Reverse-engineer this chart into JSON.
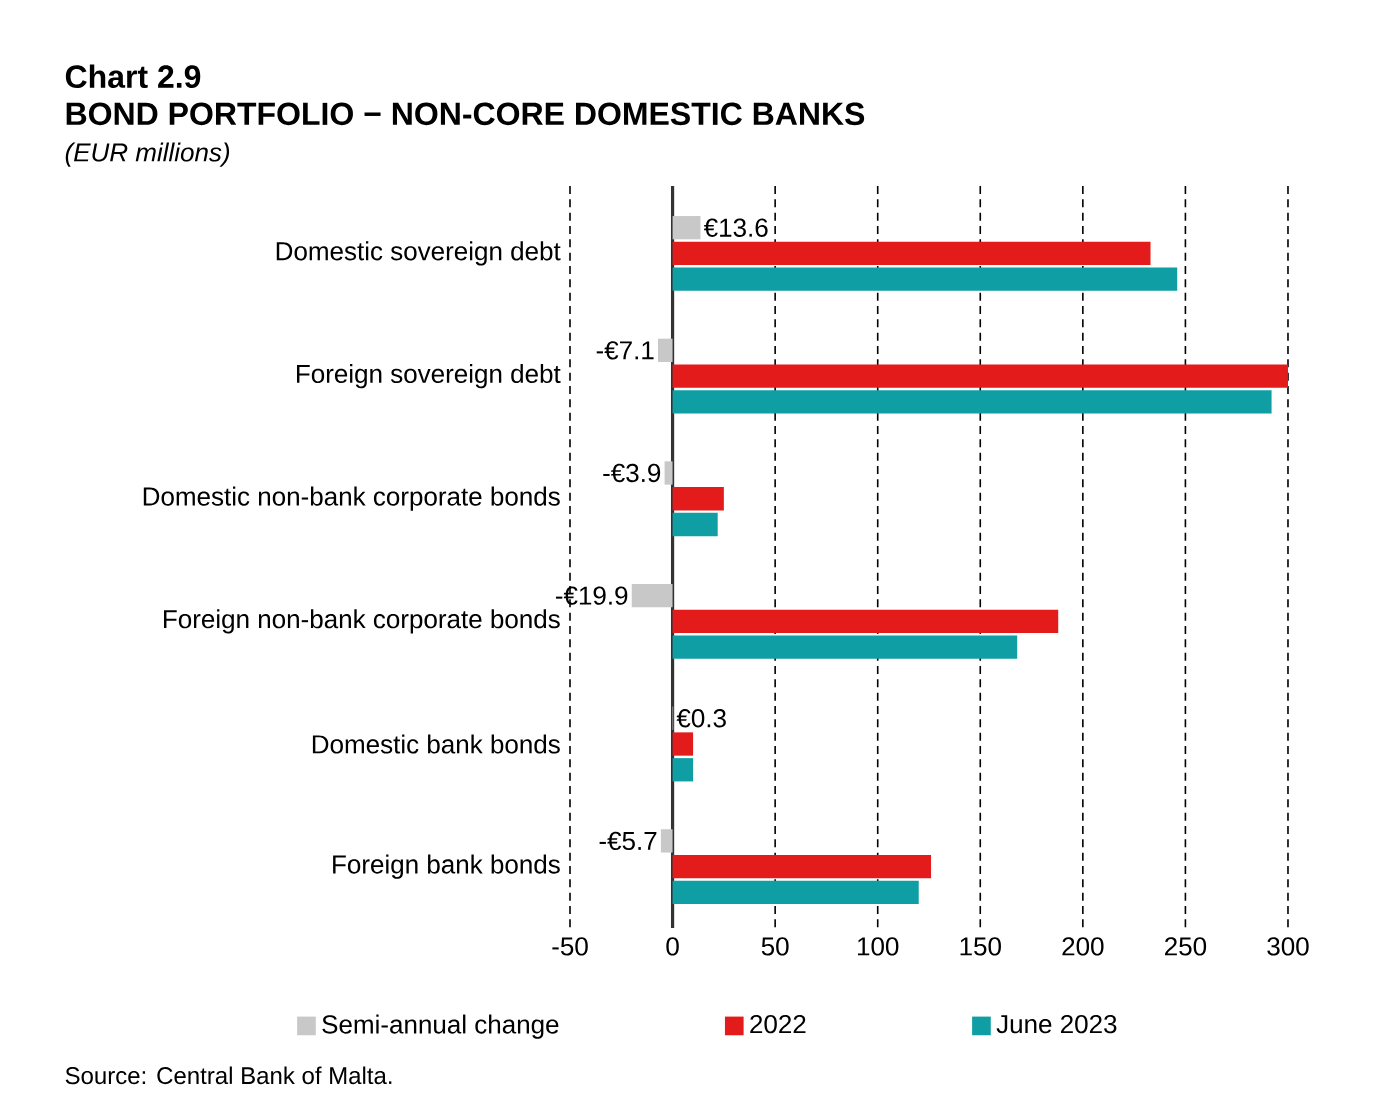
{
  "chart_data": {
    "type": "bar",
    "orientation": "horizontal",
    "title": "Chart 2.9",
    "subtitle": "BOND PORTFOLIO − NON-CORE DOMESTIC BANKS",
    "annotations": [
      "(EUR millions)",
      "Source: Central Bank of Malta."
    ],
    "categories": [
      "Domestic sovereign debt",
      "Foreign sovereign debt",
      "Domestic non-bank corporate bonds",
      "Foreign non-bank corporate bonds",
      "Domestic bank bonds",
      "Foreign bank bonds"
    ],
    "series": [
      {
        "name": "Semi-annual change",
        "color": "#c8c8c8",
        "values": [
          13.6,
          -7.1,
          -3.9,
          -19.9,
          0.3,
          -5.7
        ],
        "value_labels": [
          "€13.6",
          "-€7.1",
          "-€3.9",
          "-€19.9",
          "€0.3",
          "-€5.7"
        ]
      },
      {
        "name": "2022",
        "color": "#e31b1b",
        "values": [
          233,
          300,
          25,
          188,
          10,
          126
        ]
      },
      {
        "name": "June 2023",
        "color": "#0e9ea4",
        "values": [
          246,
          292,
          22,
          168,
          10,
          120
        ]
      }
    ],
    "xlim": [
      -50,
      300
    ],
    "xticks": [
      -50,
      0,
      50,
      100,
      150,
      200,
      250,
      300
    ],
    "grid": "x",
    "legend": "bottom"
  }
}
